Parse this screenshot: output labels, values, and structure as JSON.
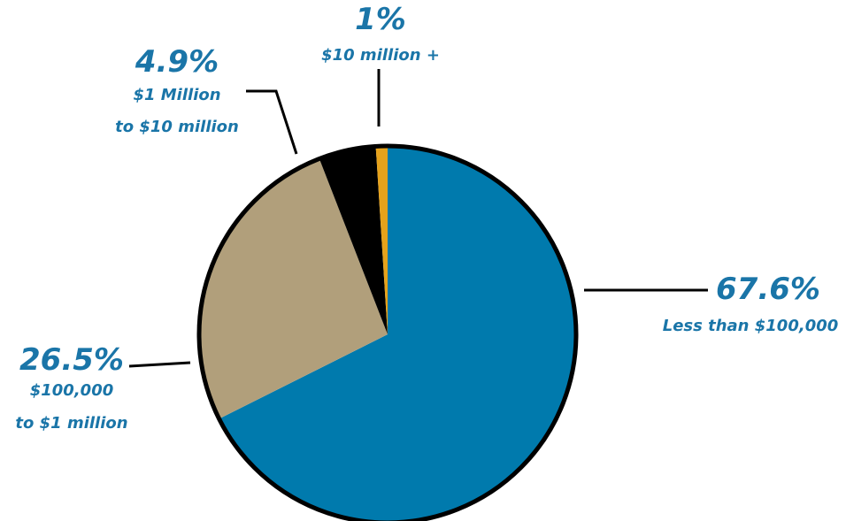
{
  "chart_data": {
    "type": "pie",
    "title": "",
    "slices": [
      {
        "percent_label": "67.6%",
        "value": 67.6,
        "category_lines": [
          "Less than $100,000"
        ],
        "color": "#007aad"
      },
      {
        "percent_label": "26.5%",
        "value": 26.5,
        "category_lines": [
          "$100,000",
          "to $1 million"
        ],
        "color": "#b19f7b"
      },
      {
        "percent_label": "4.9%",
        "value": 4.9,
        "category_lines": [
          "$1 Million",
          "to $10 million"
        ],
        "color": "#000000"
      },
      {
        "percent_label": "1%",
        "value": 1,
        "category_lines": [
          "$10 million +"
        ],
        "color": "#e6a21b"
      }
    ],
    "label_color": "#1a75a8",
    "outline_color": "#000000"
  }
}
